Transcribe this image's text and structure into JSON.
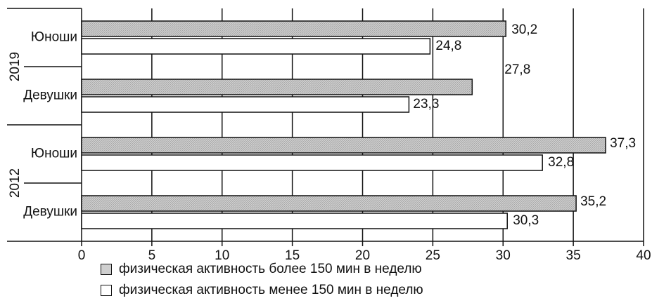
{
  "chart_data": {
    "type": "bar",
    "orientation": "horizontal",
    "groups": [
      {
        "year": "2019",
        "categories": [
          "Юноши",
          "Девушки"
        ]
      },
      {
        "year": "2012",
        "categories": [
          "Юноши",
          "Девушки"
        ]
      }
    ],
    "series": [
      {
        "name": "физическая активность более 150 мин в неделю",
        "color": "#cfcfcf",
        "values": [
          30.2,
          27.8,
          37.3,
          35.2
        ]
      },
      {
        "name": "физическая активность менее 150 мин в неделю",
        "color": "#ffffff",
        "values": [
          24.8,
          23.3,
          32.8,
          30.3
        ]
      }
    ],
    "value_labels": [
      [
        "30,2",
        "27,8",
        "37,3",
        "35,2"
      ],
      [
        "24,8",
        "23,3",
        "32,8",
        "30,3"
      ]
    ],
    "xticks": [
      "0",
      "5",
      "10",
      "15",
      "20",
      "25",
      "30",
      "35",
      "40"
    ],
    "xlim": [
      0,
      40
    ],
    "grid": "vertical",
    "legend_position": "bottom"
  }
}
